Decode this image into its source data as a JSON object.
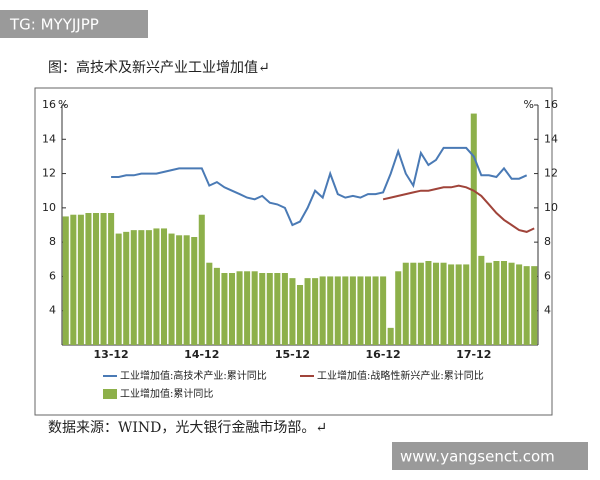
{
  "badge": "TG: MYYJJPP",
  "caption": "图：高技术及新兴产业工业增加值↵",
  "source": "数据来源：WIND，光大银行金融市场部。↵",
  "watermark": "www.yangsenct.com",
  "chart_data": {
    "type": "combo",
    "categories": [
      null,
      null,
      null,
      null,
      null,
      null,
      "13-12",
      null,
      null,
      null,
      null,
      null,
      null,
      null,
      null,
      null,
      null,
      null,
      "14-12",
      null,
      null,
      null,
      null,
      null,
      null,
      null,
      null,
      null,
      null,
      null,
      "15-12",
      null,
      null,
      null,
      null,
      null,
      null,
      null,
      null,
      null,
      null,
      null,
      "16-12",
      null,
      null,
      null,
      null,
      null,
      null,
      null,
      null,
      null,
      null,
      null,
      "17-12",
      null,
      null,
      null,
      null,
      null,
      null,
      null,
      null
    ],
    "series": [
      {
        "name": "工业增加值:累计同比",
        "type": "bar",
        "axis": "y",
        "color": "#8db04a",
        "values": [
          9.5,
          9.6,
          9.6,
          9.7,
          9.7,
          9.7,
          9.7,
          8.5,
          8.6,
          8.7,
          8.7,
          8.7,
          8.8,
          8.8,
          8.5,
          8.4,
          8.4,
          8.3,
          9.6,
          6.8,
          6.5,
          6.2,
          6.2,
          6.3,
          6.3,
          6.3,
          6.2,
          6.2,
          6.2,
          6.2,
          5.9,
          5.5,
          5.9,
          5.9,
          6.0,
          6.0,
          6.0,
          6.0,
          6.0,
          6.0,
          6.0,
          6.0,
          6.0,
          3.0,
          6.3,
          6.8,
          6.8,
          6.8,
          6.9,
          6.8,
          6.8,
          6.7,
          6.7,
          6.7,
          15.5,
          7.2,
          6.8,
          6.9,
          6.9,
          6.8,
          6.7,
          6.6,
          6.6
        ]
      },
      {
        "name": "工业增加值:高技术产业:累计同比",
        "type": "line",
        "axis": "y",
        "color": "#4a7ab5",
        "values": [
          null,
          null,
          null,
          null,
          null,
          null,
          11.8,
          11.8,
          11.9,
          11.9,
          12.0,
          12.0,
          12.0,
          12.1,
          12.2,
          12.3,
          12.3,
          12.3,
          12.3,
          11.3,
          11.5,
          11.2,
          11.0,
          10.8,
          10.6,
          10.5,
          10.7,
          10.3,
          10.2,
          10.0,
          9.0,
          9.2,
          10.0,
          11.0,
          10.6,
          12.0,
          10.8,
          10.6,
          10.7,
          10.6,
          10.8,
          10.8,
          10.9,
          12.0,
          13.3,
          12.0,
          11.3,
          13.2,
          12.5,
          12.8,
          13.5,
          13.5,
          13.5,
          13.5,
          13.0,
          11.9,
          11.9,
          11.8,
          12.3,
          11.7,
          11.7,
          11.9,
          null
        ]
      },
      {
        "name": "工业增加值:战略性新兴产业:累计同比",
        "type": "line",
        "axis": "y2",
        "color": "#a0443a",
        "values": [
          null,
          null,
          null,
          null,
          null,
          null,
          null,
          null,
          null,
          null,
          null,
          null,
          null,
          null,
          null,
          null,
          null,
          null,
          null,
          null,
          null,
          null,
          null,
          null,
          null,
          null,
          null,
          null,
          null,
          null,
          null,
          null,
          null,
          null,
          null,
          null,
          null,
          null,
          null,
          null,
          null,
          null,
          10.5,
          10.6,
          10.7,
          10.8,
          10.9,
          11.0,
          11.0,
          11.1,
          11.2,
          11.2,
          11.3,
          11.2,
          11.0,
          10.7,
          10.2,
          9.7,
          9.3,
          9.0,
          8.7,
          8.6,
          8.8
        ]
      }
    ],
    "ylim": [
      2,
      16
    ],
    "yticks": [
      4,
      6,
      8,
      10,
      12,
      14,
      16
    ],
    "y_unit": "%",
    "y2lim": [
      2,
      16
    ],
    "y2ticks": [
      4,
      6,
      8,
      10,
      12,
      14,
      16
    ],
    "y2_unit": "%",
    "grid": false
  }
}
